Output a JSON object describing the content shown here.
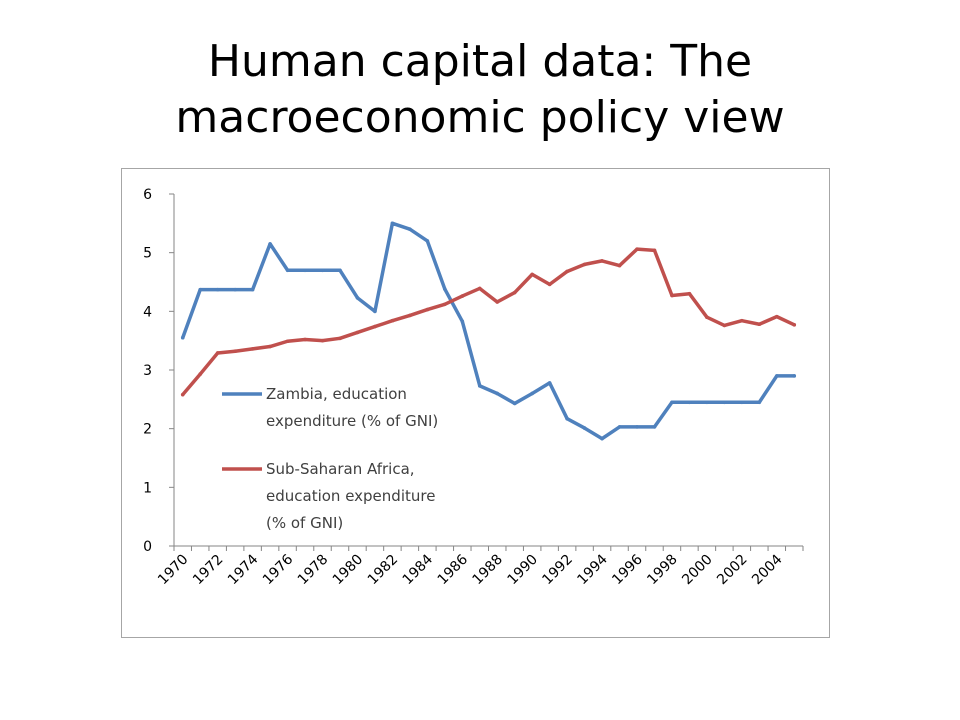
{
  "slide": {
    "title_line1": "Human capital data: The",
    "title_line2": "macroeconomic policy view"
  },
  "chart_data": {
    "type": "line",
    "title": "",
    "xlabel": "",
    "ylabel": "",
    "ylim": [
      0,
      6
    ],
    "yticks": [
      0,
      1,
      2,
      3,
      4,
      5,
      6
    ],
    "grid": false,
    "legend_position": "left-inside",
    "x": [
      1970,
      1971,
      1972,
      1973,
      1974,
      1975,
      1976,
      1977,
      1978,
      1979,
      1980,
      1981,
      1982,
      1983,
      1984,
      1985,
      1986,
      1987,
      1988,
      1989,
      1990,
      1991,
      1992,
      1993,
      1994,
      1995,
      1996,
      1997,
      1998,
      1999,
      2000,
      2001,
      2002,
      2003,
      2004,
      2005
    ],
    "x_tick_labels": [
      "1970",
      "1972",
      "1974",
      "1976",
      "1978",
      "1980",
      "1982",
      "1984",
      "1986",
      "1988",
      "1990",
      "1992",
      "1994",
      "1996",
      "1998",
      "2000",
      "2002",
      "2004"
    ],
    "series": [
      {
        "name_lines": [
          "Zambia, education",
          "expenditure (% of GNI)"
        ],
        "color": "#4f81bd",
        "values": [
          3.55,
          4.37,
          4.37,
          4.37,
          4.37,
          5.15,
          4.7,
          4.7,
          4.7,
          4.7,
          4.23,
          4.0,
          5.5,
          5.4,
          5.2,
          4.38,
          3.83,
          2.73,
          2.6,
          2.43,
          2.6,
          2.78,
          2.17,
          2.01,
          1.83,
          2.03,
          2.03,
          2.03,
          2.45,
          2.45,
          2.45,
          2.45,
          2.45,
          2.45,
          2.9,
          2.9
        ]
      },
      {
        "name_lines": [
          "Sub-Saharan Africa,",
          "education expenditure",
          "(% of GNI)"
        ],
        "color": "#c0504d",
        "values": [
          2.58,
          2.93,
          3.29,
          3.32,
          3.36,
          3.4,
          3.49,
          3.52,
          3.5,
          3.54,
          3.64,
          3.74,
          3.84,
          3.93,
          4.03,
          4.12,
          4.26,
          4.39,
          4.16,
          4.32,
          4.63,
          4.46,
          4.68,
          4.8,
          4.86,
          4.78,
          5.06,
          5.04,
          4.27,
          4.3,
          3.9,
          3.76,
          3.84,
          3.78,
          3.91,
          3.77
        ]
      }
    ]
  }
}
